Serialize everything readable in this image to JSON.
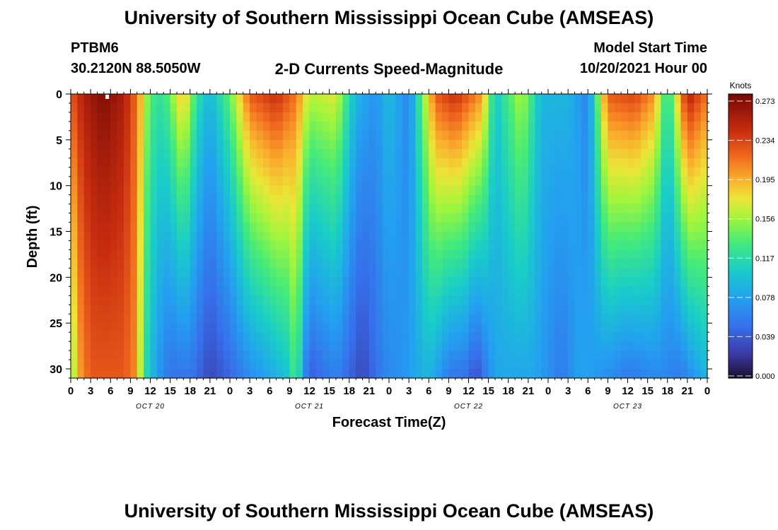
{
  "page": {
    "title": "University of Southern Mississippi Ocean Cube (AMSEAS)",
    "station": "PTBM6",
    "coordinates": "30.2120N  88.5050W",
    "subtitle": "2-D Currents Speed-Magnitude",
    "model_start_label": "Model Start Time",
    "model_start_value": "10/20/2021 Hour 00",
    "footer_title": "University of Southern Mississippi Ocean Cube (AMSEAS)"
  },
  "chart_data": {
    "type": "heatmap",
    "title": "2-D Currents Speed-Magnitude",
    "xlabel": "Forecast Time(Z)",
    "ylabel": "Depth (ft)",
    "x_hours_range": [
      0,
      96
    ],
    "ylim": [
      0,
      31
    ],
    "y_inverted": true,
    "y_ticks": [
      0,
      5,
      10,
      15,
      20,
      25,
      30
    ],
    "x_tick_labels": [
      "0",
      "3",
      "6",
      "9",
      "12",
      "15",
      "18",
      "21",
      "0",
      "3",
      "6",
      "9",
      "12",
      "15",
      "18",
      "21",
      "0",
      "3",
      "6",
      "9",
      "12",
      "15",
      "18",
      "21",
      "0",
      "3",
      "6",
      "9",
      "12",
      "15",
      "18",
      "21",
      "0"
    ],
    "day_labels": [
      {
        "text": "OCT 20",
        "hour": 12
      },
      {
        "text": "OCT 21",
        "hour": 36
      },
      {
        "text": "OCT 22",
        "hour": 60
      },
      {
        "text": "OCT 23",
        "hour": 84
      }
    ],
    "colorbar": {
      "units": "Knots",
      "min": 0.0,
      "max": 0.273,
      "ticks": [
        "0.273",
        "0.234",
        "0.195",
        "0.156",
        "0.117",
        "0.078",
        "0.039",
        "0.000"
      ]
    },
    "marker_hour": 5.5,
    "surface_speed_by_hour": [
      {
        "hour": 0,
        "speed": 0.22
      },
      {
        "hour": 2,
        "speed": 0.25
      },
      {
        "hour": 5,
        "speed": 0.268
      },
      {
        "hour": 8,
        "speed": 0.25
      },
      {
        "hour": 10,
        "speed": 0.21
      },
      {
        "hour": 12,
        "speed": 0.13
      },
      {
        "hour": 14,
        "speed": 0.12
      },
      {
        "hour": 17,
        "speed": 0.19
      },
      {
        "hour": 19,
        "speed": 0.12
      },
      {
        "hour": 21,
        "speed": 0.09
      },
      {
        "hour": 24,
        "speed": 0.14
      },
      {
        "hour": 27,
        "speed": 0.22
      },
      {
        "hour": 31,
        "speed": 0.24
      },
      {
        "hour": 34,
        "speed": 0.21
      },
      {
        "hour": 36,
        "speed": 0.16
      },
      {
        "hour": 40,
        "speed": 0.17
      },
      {
        "hour": 43,
        "speed": 0.09
      },
      {
        "hour": 46,
        "speed": 0.07
      },
      {
        "hour": 48,
        "speed": 0.095
      },
      {
        "hour": 51,
        "speed": 0.06
      },
      {
        "hour": 55,
        "speed": 0.22
      },
      {
        "hour": 58,
        "speed": 0.24
      },
      {
        "hour": 62,
        "speed": 0.2
      },
      {
        "hour": 64,
        "speed": 0.1
      },
      {
        "hour": 68,
        "speed": 0.16
      },
      {
        "hour": 71,
        "speed": 0.09
      },
      {
        "hour": 75,
        "speed": 0.09
      },
      {
        "hour": 78,
        "speed": 0.06
      },
      {
        "hour": 81,
        "speed": 0.22
      },
      {
        "hour": 85,
        "speed": 0.23
      },
      {
        "hour": 88,
        "speed": 0.2
      },
      {
        "hour": 90,
        "speed": 0.11
      },
      {
        "hour": 93,
        "speed": 0.25
      },
      {
        "hour": 96,
        "speed": 0.21
      }
    ],
    "bottom_speed_by_hour": [
      {
        "hour": 0,
        "speed": 0.13
      },
      {
        "hour": 1,
        "speed": 0.19
      },
      {
        "hour": 3,
        "speed": 0.22
      },
      {
        "hour": 8,
        "speed": 0.22
      },
      {
        "hour": 10,
        "speed": 0.2
      },
      {
        "hour": 11,
        "speed": 0.12
      },
      {
        "hour": 13,
        "speed": 0.075
      },
      {
        "hour": 15,
        "speed": 0.05
      },
      {
        "hour": 18,
        "speed": 0.055
      },
      {
        "hour": 21,
        "speed": 0.03
      },
      {
        "hour": 24,
        "speed": 0.045
      },
      {
        "hour": 27,
        "speed": 0.065
      },
      {
        "hour": 30,
        "speed": 0.08
      },
      {
        "hour": 33,
        "speed": 0.1
      },
      {
        "hour": 34,
        "speed": 0.14
      },
      {
        "hour": 35,
        "speed": 0.075
      },
      {
        "hour": 36,
        "speed": 0.04
      },
      {
        "hour": 38,
        "speed": 0.05
      },
      {
        "hour": 40,
        "speed": 0.06
      },
      {
        "hour": 44,
        "speed": 0.03
      },
      {
        "hour": 47,
        "speed": 0.06
      },
      {
        "hour": 50,
        "speed": 0.07
      },
      {
        "hour": 54,
        "speed": 0.09
      },
      {
        "hour": 57,
        "speed": 0.055
      },
      {
        "hour": 60,
        "speed": 0.05
      },
      {
        "hour": 61,
        "speed": 0.03
      },
      {
        "hour": 64,
        "speed": 0.08
      },
      {
        "hour": 70,
        "speed": 0.08
      },
      {
        "hour": 74,
        "speed": 0.055
      },
      {
        "hour": 77,
        "speed": 0.08
      },
      {
        "hour": 80,
        "speed": 0.07
      },
      {
        "hour": 84,
        "speed": 0.055
      },
      {
        "hour": 89,
        "speed": 0.065
      },
      {
        "hour": 92,
        "speed": 0.055
      },
      {
        "hour": 96,
        "speed": 0.09
      }
    ]
  }
}
